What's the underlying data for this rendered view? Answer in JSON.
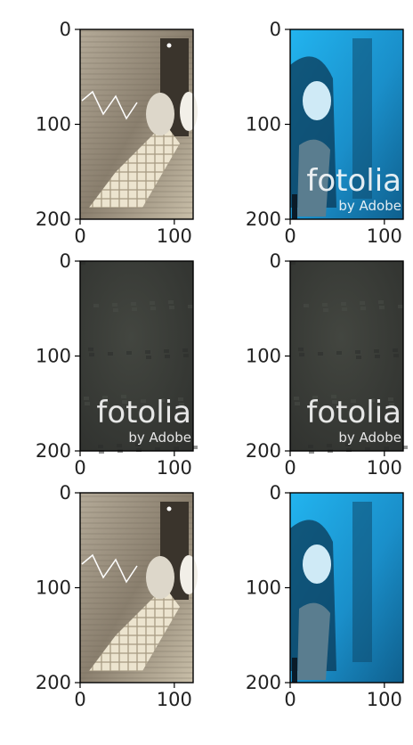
{
  "chart_data": {
    "type": "image-grid",
    "rows": 3,
    "cols": 2,
    "panels": [
      {
        "row": 0,
        "col": 0,
        "image": "woman-hand-on-wooden-table-sepia",
        "watermark": null
      },
      {
        "row": 0,
        "col": 1,
        "image": "smiling-woman-portrait-blue-tint",
        "watermark": {
          "main": "fotolia",
          "sub": "by Adobe"
        }
      },
      {
        "row": 1,
        "col": 0,
        "image": "dark-grey-texture",
        "watermark": {
          "main": "fotolia",
          "sub": "by Adobe"
        }
      },
      {
        "row": 1,
        "col": 1,
        "image": "dark-grey-texture",
        "watermark": {
          "main": "fotolia",
          "sub": "by Adobe"
        }
      },
      {
        "row": 2,
        "col": 0,
        "image": "woman-hand-on-wooden-table-sepia",
        "watermark": null
      },
      {
        "row": 2,
        "col": 1,
        "image": "smiling-woman-portrait-blue-tint",
        "watermark": null
      }
    ],
    "xlim": [
      0,
      120
    ],
    "ylim": [
      200,
      0
    ],
    "x_ticks": [
      0,
      100
    ],
    "y_ticks": [
      0,
      100,
      200
    ],
    "x_tick_labels": [
      "0",
      "100"
    ],
    "y_tick_labels": [
      "0",
      "100",
      "200"
    ],
    "grid": false,
    "colors": {
      "sepia_base": "#8a7f6e",
      "sepia_light": "#d9d2c2",
      "blue_base": "#1ea6e0",
      "blue_dark": "#0b3a57",
      "texture": "#3b3d3a"
    }
  }
}
